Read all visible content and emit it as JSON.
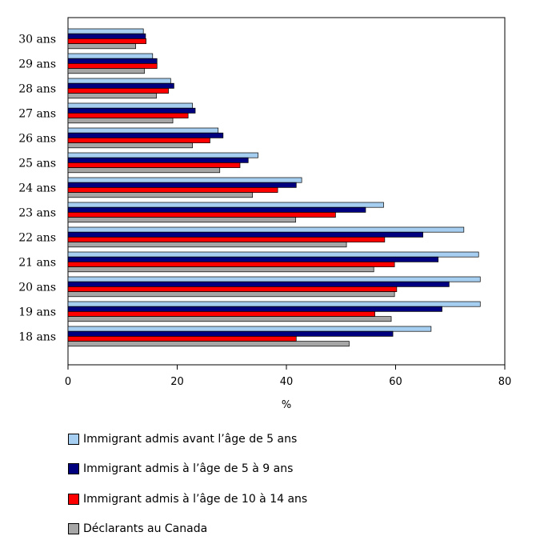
{
  "chart_data": {
    "type": "bar",
    "orientation": "horizontal",
    "title": "",
    "xlabel": "%",
    "ylabel": "",
    "xlim": [
      0,
      80
    ],
    "xticks": [
      0,
      20,
      40,
      60,
      80
    ],
    "grid": false,
    "legend_position": "bottom",
    "categories": [
      "30 ans",
      "29 ans",
      "28 ans",
      "27 ans",
      "26 ans",
      "25 ans",
      "24 ans",
      "23 ans",
      "22 ans",
      "21 ans",
      "20 ans",
      "19 ans",
      "18 ans"
    ],
    "series": [
      {
        "name": "Immigrant admis avant l’âge de 5 ans",
        "color": "#a6cef0",
        "values": [
          13.8,
          15.5,
          18.8,
          22.8,
          27.5,
          34.8,
          42.8,
          57.8,
          72.5,
          75.2,
          75.5,
          75.5,
          66.5
        ]
      },
      {
        "name": "Immigrant admis à l’âge de 5 à 9 ans",
        "color": "#00007f",
        "values": [
          14.2,
          16.3,
          19.4,
          23.3,
          28.4,
          33.0,
          41.8,
          54.5,
          65.0,
          67.8,
          69.8,
          68.5,
          59.5
        ]
      },
      {
        "name": "Immigrant admis à l’âge de 10 à 14 ans",
        "color": "#ff0000",
        "values": [
          14.3,
          16.3,
          18.4,
          22.0,
          26.0,
          31.5,
          38.4,
          49.0,
          58.0,
          59.8,
          60.2,
          56.2,
          41.8
        ]
      },
      {
        "name": "Déclarants au Canada",
        "color": "#a6a6a6",
        "values": [
          12.4,
          14.0,
          16.2,
          19.2,
          22.8,
          27.8,
          33.8,
          41.7,
          51.0,
          56.0,
          59.8,
          59.2,
          51.5
        ]
      }
    ]
  }
}
